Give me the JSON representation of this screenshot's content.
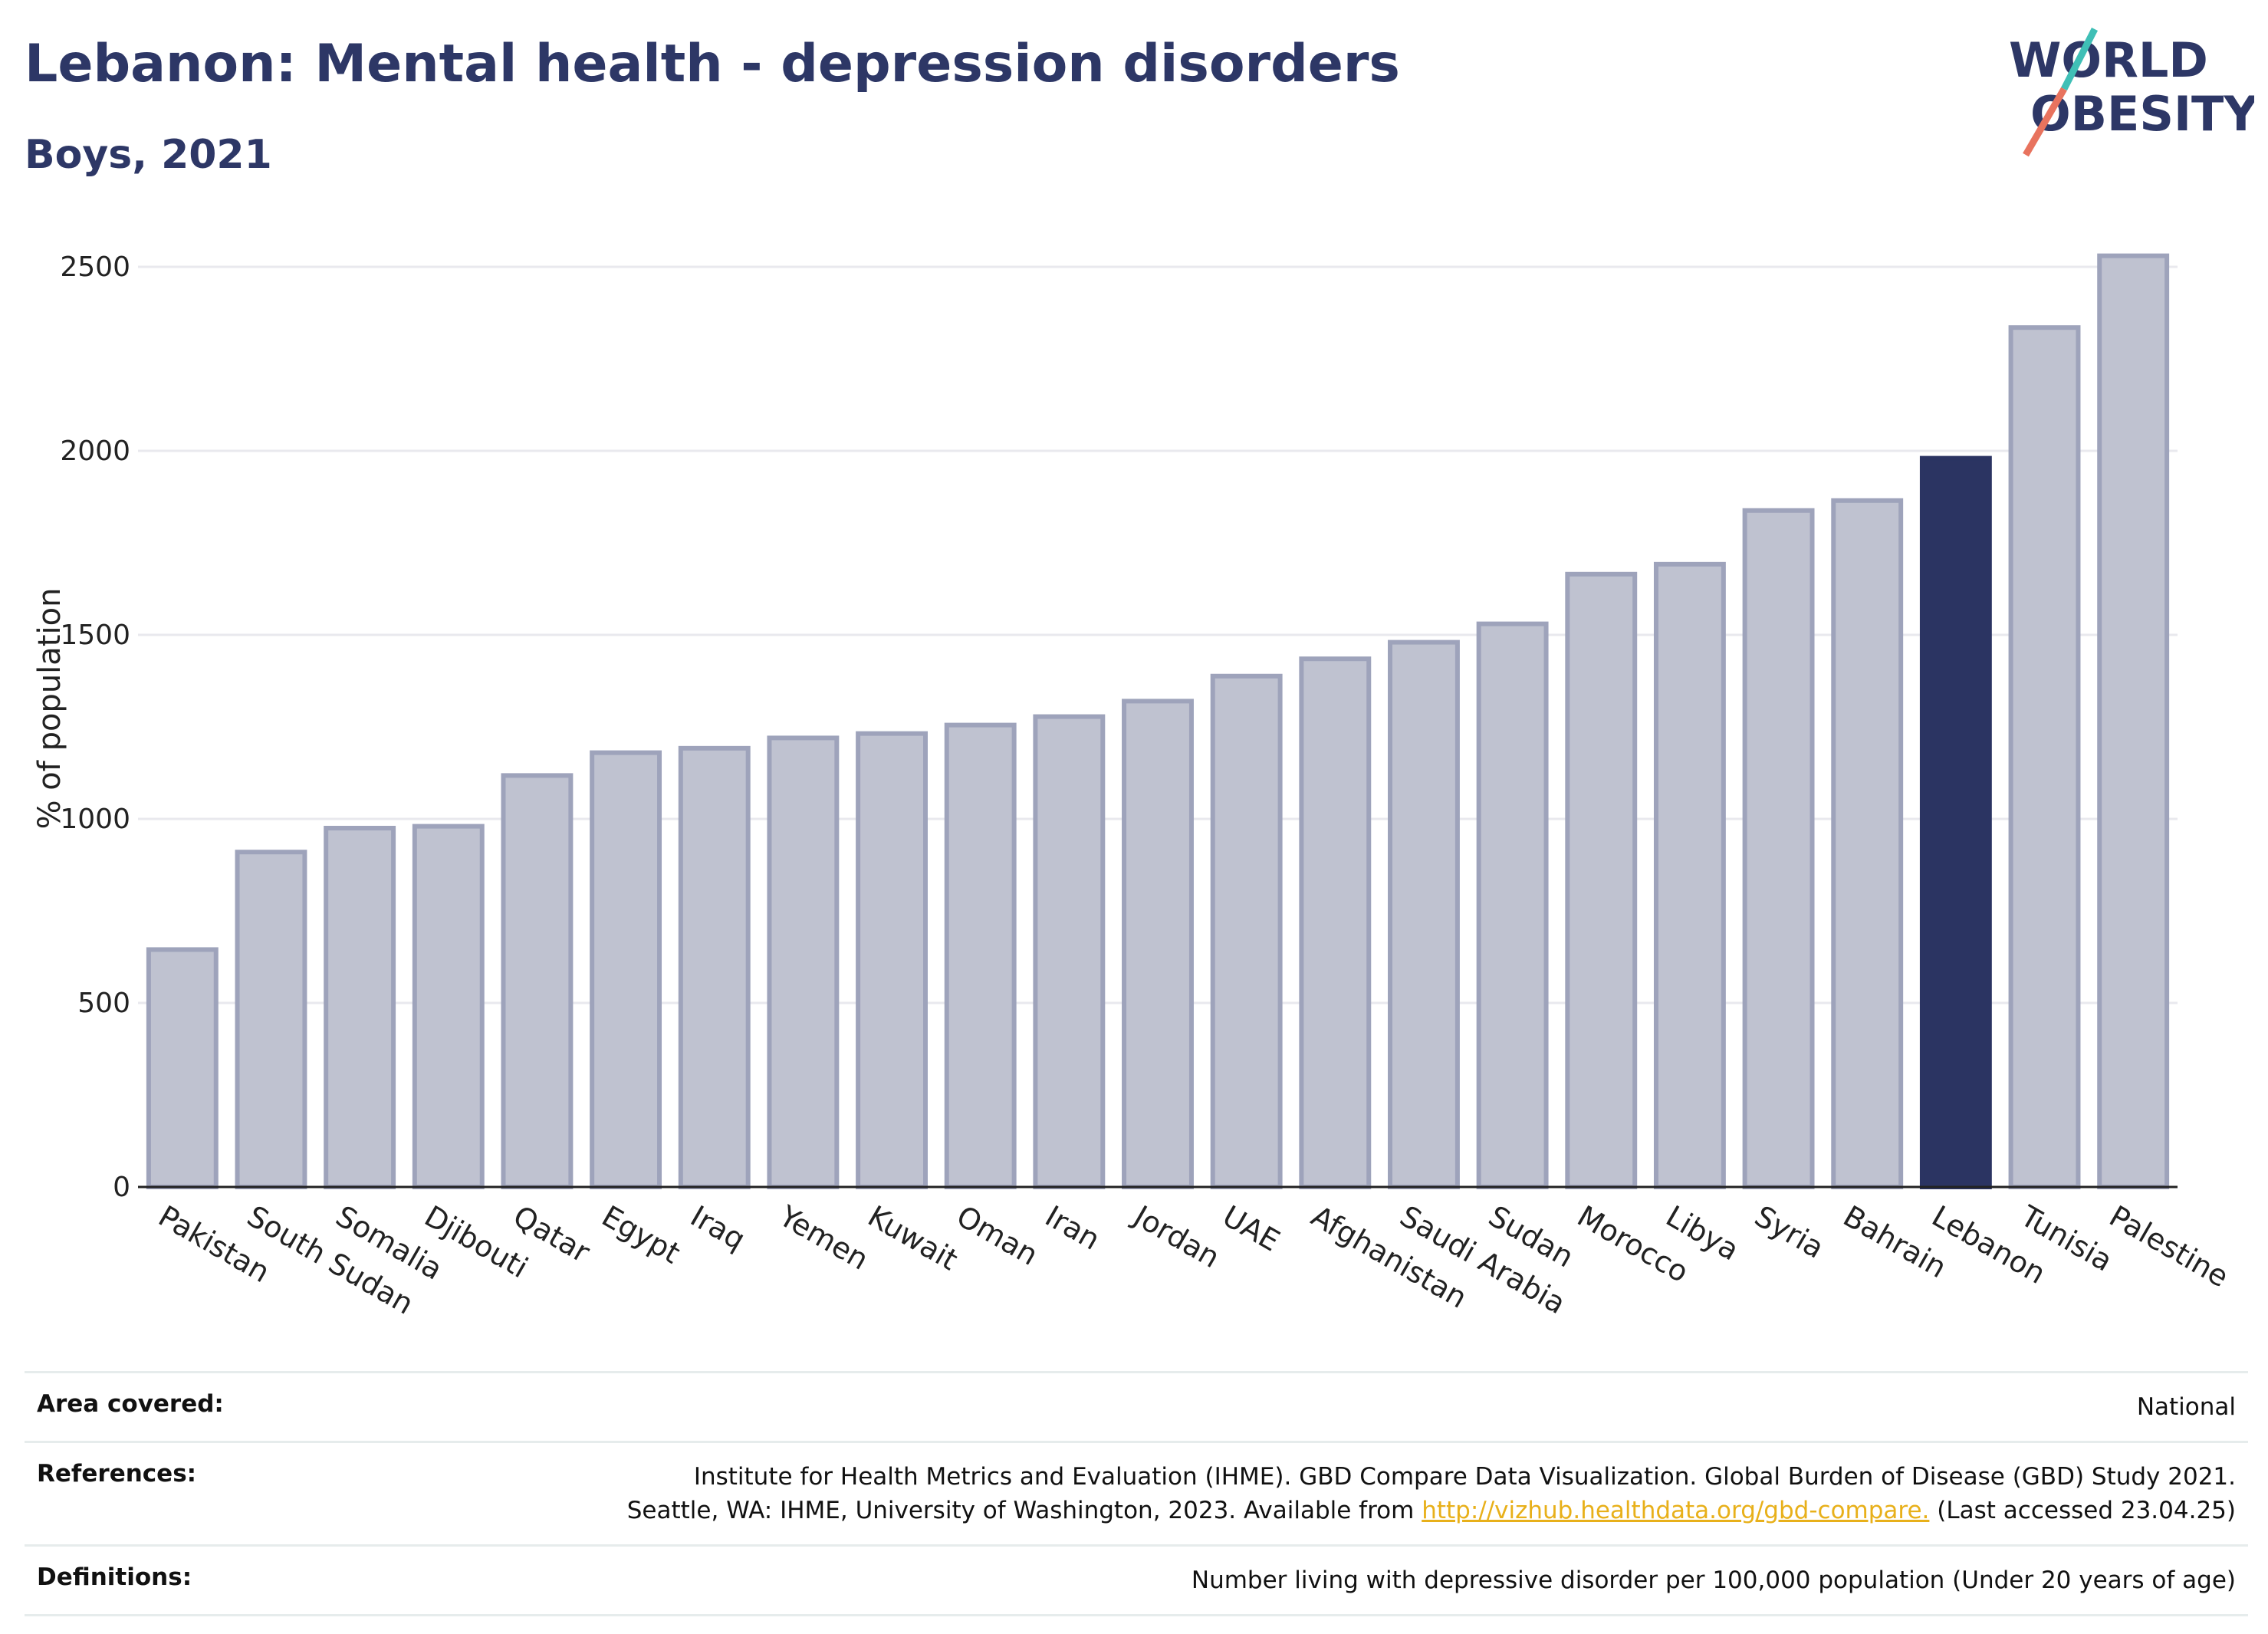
{
  "header": {
    "title": "Lebanon: Mental health - depression disorders",
    "subtitle": "Boys, 2021"
  },
  "logo": {
    "line1": "WORLD",
    "line2": "OBESITY",
    "colors": {
      "text": "#2d3766",
      "teal": "#3fbfb6",
      "coral": "#e8735e"
    }
  },
  "colors": {
    "bar": "#bfc2d0",
    "bar_border": "#9ea3bb",
    "highlight": "#2b3462",
    "grid": "#e9e9ee",
    "axis": "#222222"
  },
  "chart_data": {
    "type": "bar",
    "ylabel": "% of population",
    "xlabel": "",
    "ylim": [
      0,
      2600
    ],
    "yticks": [
      0,
      500,
      1000,
      1500,
      2000,
      2500
    ],
    "grid": true,
    "highlight": "Lebanon",
    "categories": [
      "Pakistan",
      "South Sudan",
      "Somalia",
      "Djibouti",
      "Qatar",
      "Egypt",
      "Iraq",
      "Yemen",
      "Kuwait",
      "Oman",
      "Iran",
      "Jordan",
      "UAE",
      "Afghanistan",
      "Saudi Arabia",
      "Sudan",
      "Morocco",
      "Libya",
      "Syria",
      "Bahrain",
      "Lebanon",
      "Tunisia",
      "Palestine"
    ],
    "values": [
      645,
      910,
      975,
      980,
      1118,
      1180,
      1192,
      1220,
      1232,
      1255,
      1278,
      1320,
      1388,
      1435,
      1480,
      1530,
      1665,
      1692,
      1838,
      1865,
      1980,
      2335,
      2530
    ]
  },
  "info": {
    "area_label": "Area covered:",
    "area_value": "National",
    "references_label": "References:",
    "references_line1": "Institute for Health Metrics and Evaluation (IHME). GBD Compare Data Visualization. Global Burden of Disease (GBD) Study 2021.",
    "references_line2_pre": "Seattle, WA: IHME, University of Washington, 2023. Available from ",
    "references_link": "http://vizhub.healthdata.org/gbd-compare.",
    "references_line2_post": " (Last accessed 23.04.25)",
    "definitions_label": "Definitions:",
    "definitions_value": "Number living with depressive disorder per 100,000 population (Under 20 years of age)"
  }
}
